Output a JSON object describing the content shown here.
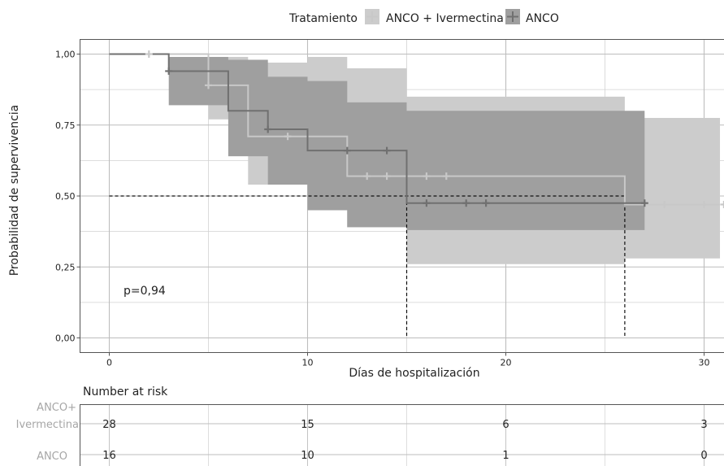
{
  "legend": {
    "title": "Tratamiento",
    "items": [
      {
        "label": "ANCO + Ivermectina",
        "color": "#c8c8c8",
        "band": "#cccccc"
      },
      {
        "label": "ANCO",
        "color": "#707070",
        "band": "#9f9f9f"
      }
    ]
  },
  "pvalue": "p=0,94",
  "risk_table": {
    "title": "Number at risk",
    "rows": [
      {
        "name_lines": [
          "ANCO+",
          "Ivermectina"
        ],
        "values": [
          "28",
          "15",
          "6",
          "3"
        ]
      },
      {
        "name_lines": [
          "ANCO"
        ],
        "values": [
          "16",
          "10",
          "1",
          "0"
        ]
      }
    ]
  },
  "chart_data": {
    "type": "line",
    "subtype": "kaplan-meier",
    "xlabel": "Días de hospitalización",
    "ylabel": "Probabilidad de supervivencia",
    "xlim": [
      -1.4,
      30.8
    ],
    "ylim": [
      -0.05,
      1.05
    ],
    "x_ticks": [
      0,
      10,
      20,
      30
    ],
    "x_tick_labels": [
      "0",
      "10",
      "20",
      "30"
    ],
    "y_ticks": [
      0,
      0.25,
      0.5,
      0.75,
      1
    ],
    "y_tick_labels": [
      "0,00",
      "0,25",
      "0,50",
      "0,75",
      "1,00"
    ],
    "grid": true,
    "legend_position": "top",
    "median_line": {
      "y": 0.5,
      "x": [
        15,
        26
      ]
    },
    "series": [
      {
        "name": "ANCO + Ivermectina",
        "color": "#c8c8c8",
        "band_color": "#cccccc",
        "steps": [
          {
            "x": 0,
            "y": 1.0,
            "lower": 1.0,
            "upper": 1.0
          },
          {
            "x": 5,
            "y": 0.89,
            "lower": 0.77,
            "upper": 0.99
          },
          {
            "x": 7,
            "y": 0.71,
            "lower": 0.54,
            "upper": 0.97
          },
          {
            "x": 10,
            "y": 0.71,
            "lower": 0.54,
            "upper": 0.99
          },
          {
            "x": 12,
            "y": 0.57,
            "lower": 0.39,
            "upper": 0.95
          },
          {
            "x": 15,
            "y": 0.57,
            "lower": 0.26,
            "upper": 0.85
          },
          {
            "x": 26,
            "y": 0.47,
            "lower": 0.28,
            "upper": 0.775
          },
          {
            "x": 30.8,
            "y": 0.47,
            "lower": 0.28,
            "upper": 0.775
          }
        ],
        "censored_x": [
          2,
          5,
          9,
          13,
          14,
          16,
          17,
          28,
          30,
          31
        ]
      },
      {
        "name": "ANCO",
        "color": "#707070",
        "band_color": "#9f9f9f",
        "steps": [
          {
            "x": 0,
            "y": 1.0,
            "lower": 1.0,
            "upper": 1.0
          },
          {
            "x": 3,
            "y": 0.94,
            "lower": 0.82,
            "upper": 0.99
          },
          {
            "x": 6,
            "y": 0.8,
            "lower": 0.64,
            "upper": 0.98
          },
          {
            "x": 8,
            "y": 0.735,
            "lower": 0.54,
            "upper": 0.92
          },
          {
            "x": 10,
            "y": 0.66,
            "lower": 0.45,
            "upper": 0.905
          },
          {
            "x": 12,
            "y": 0.66,
            "lower": 0.39,
            "upper": 0.83
          },
          {
            "x": 15,
            "y": 0.475,
            "lower": 0.38,
            "upper": 0.8
          },
          {
            "x": 27,
            "y": 0.475,
            "lower": 0.26,
            "upper": 0.775
          }
        ],
        "censored_x": [
          3,
          8,
          12,
          14,
          16,
          18,
          19,
          27
        ]
      }
    ]
  }
}
